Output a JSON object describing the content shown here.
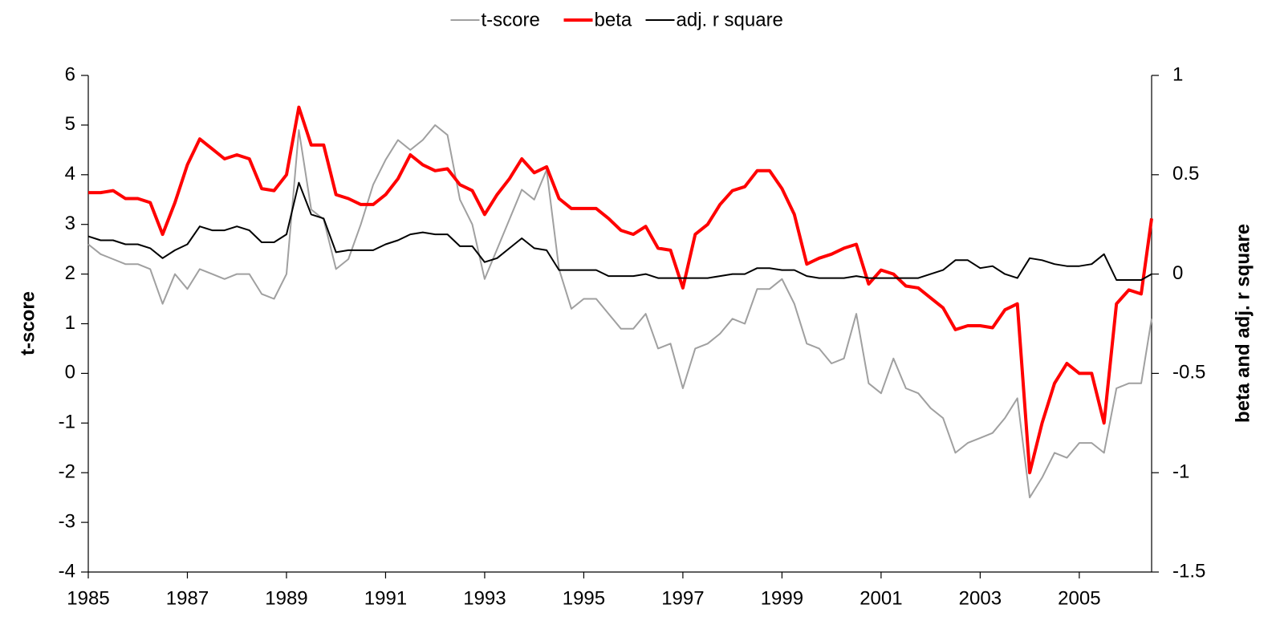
{
  "chart_data": {
    "type": "line",
    "x": [
      1985,
      1985.25,
      1985.5,
      1985.75,
      1986,
      1986.25,
      1986.5,
      1986.75,
      1987,
      1987.25,
      1987.5,
      1987.75,
      1988,
      1988.25,
      1988.5,
      1988.75,
      1989,
      1989.25,
      1989.5,
      1989.75,
      1990,
      1990.25,
      1990.5,
      1990.75,
      1991,
      1991.25,
      1991.5,
      1991.75,
      1992,
      1992.25,
      1992.5,
      1992.75,
      1993,
      1993.25,
      1993.5,
      1993.75,
      1994,
      1994.25,
      1994.5,
      1994.75,
      1995,
      1995.25,
      1995.5,
      1995.75,
      1996,
      1996.25,
      1996.5,
      1996.75,
      1997,
      1997.25,
      1997.5,
      1997.75,
      1998,
      1998.25,
      1998.5,
      1998.75,
      1999,
      1999.25,
      1999.5,
      1999.75,
      2000,
      2000.25,
      2000.5,
      2000.75,
      2001,
      2001.25,
      2001.5,
      2001.75,
      2002,
      2002.25,
      2002.5,
      2002.75,
      2003,
      2003.25,
      2003.5,
      2003.75,
      2004,
      2004.25,
      2004.5,
      2004.75,
      2005,
      2005.25,
      2005.5,
      2005.75,
      2006,
      2006.25,
      2006.46
    ],
    "series": [
      {
        "name": "t-score",
        "color": "#a0a0a0",
        "axis": "y",
        "values": [
          2.6,
          2.4,
          2.3,
          2.2,
          2.2,
          2.1,
          1.4,
          2.0,
          1.7,
          2.1,
          2.0,
          1.9,
          2.0,
          2.0,
          1.6,
          1.5,
          2.0,
          4.9,
          3.3,
          3.1,
          2.1,
          2.3,
          3.0,
          3.8,
          4.3,
          4.7,
          4.5,
          4.7,
          5.0,
          4.8,
          3.5,
          3.0,
          1.9,
          2.5,
          3.1,
          3.7,
          3.5,
          4.1,
          2.1,
          1.3,
          1.5,
          1.5,
          1.2,
          0.9,
          0.9,
          1.2,
          0.5,
          0.6,
          -0.3,
          0.5,
          0.6,
          0.8,
          1.1,
          1.0,
          1.7,
          1.7,
          1.9,
          1.4,
          0.6,
          0.5,
          0.2,
          0.3,
          1.2,
          -0.2,
          -0.4,
          0.3,
          -0.3,
          -0.4,
          -0.7,
          -0.9,
          -1.6,
          -1.4,
          -1.3,
          -1.2,
          -0.9,
          -0.5,
          -2.5,
          -2.1,
          -1.6,
          -1.7,
          -1.4,
          -1.4,
          -1.6,
          -0.3,
          -0.2,
          -0.2,
          1.1
        ]
      },
      {
        "name": "beta",
        "color": "#ff0000",
        "axis": "y2",
        "values": [
          0.41,
          0.41,
          0.42,
          0.38,
          0.38,
          0.36,
          0.2,
          0.36,
          0.55,
          0.68,
          0.63,
          0.58,
          0.6,
          0.58,
          0.43,
          0.42,
          0.5,
          0.84,
          0.65,
          0.65,
          0.4,
          0.38,
          0.35,
          0.35,
          0.4,
          0.48,
          0.6,
          0.55,
          0.52,
          0.53,
          0.45,
          0.42,
          0.3,
          0.4,
          0.48,
          0.58,
          0.51,
          0.54,
          0.38,
          0.33,
          0.33,
          0.33,
          0.28,
          0.22,
          0.2,
          0.24,
          0.13,
          0.12,
          -0.07,
          0.2,
          0.25,
          0.35,
          0.42,
          0.44,
          0.52,
          0.52,
          0.43,
          0.3,
          0.05,
          0.08,
          0.1,
          0.13,
          0.15,
          -0.05,
          0.02,
          0,
          -0.06,
          -0.07,
          -0.12,
          -0.17,
          -0.28,
          -0.26,
          -0.26,
          -0.27,
          -0.18,
          -0.15,
          -1.0,
          -0.75,
          -0.55,
          -0.45,
          -0.5,
          -0.5,
          -0.75,
          -0.15,
          -0.08,
          -0.1,
          0.28
        ]
      },
      {
        "name": "adj. r square",
        "color": "#000000",
        "axis": "y2",
        "values": [
          0.19,
          0.17,
          0.17,
          0.15,
          0.15,
          0.13,
          0.08,
          0.12,
          0.15,
          0.24,
          0.22,
          0.22,
          0.24,
          0.22,
          0.16,
          0.16,
          0.2,
          0.46,
          0.3,
          0.28,
          0.11,
          0.12,
          0.12,
          0.12,
          0.15,
          0.17,
          0.2,
          0.21,
          0.2,
          0.2,
          0.14,
          0.14,
          0.06,
          0.08,
          0.13,
          0.18,
          0.13,
          0.12,
          0.02,
          0.02,
          0.02,
          0.02,
          -0.01,
          -0.01,
          -0.01,
          0,
          -0.02,
          -0.02,
          -0.02,
          -0.02,
          -0.02,
          -0.01,
          0,
          0,
          0.03,
          0.03,
          0.02,
          0.02,
          -0.01,
          -0.02,
          -0.02,
          -0.02,
          -0.01,
          -0.02,
          -0.02,
          -0.02,
          -0.02,
          -0.02,
          0,
          0.02,
          0.07,
          0.07,
          0.03,
          0.04,
          0,
          -0.02,
          0.08,
          0.07,
          0.05,
          0.04,
          0.04,
          0.05,
          0.1,
          -0.03,
          -0.03,
          -0.03,
          0
        ]
      }
    ],
    "xlim": [
      1985,
      2006.46
    ],
    "xticks": [
      1985,
      1987,
      1989,
      1991,
      1993,
      1995,
      1997,
      1999,
      2001,
      2003,
      2005
    ],
    "ylim": [
      -4,
      6
    ],
    "yticks": [
      6,
      5,
      4,
      3,
      2,
      1,
      0,
      -1,
      -2,
      -3,
      -4
    ],
    "y2lim": [
      -1.5,
      1
    ],
    "y2ticks": [
      1,
      0.5,
      0,
      -0.5,
      -1,
      -1.5
    ],
    "ylabel": "t-score",
    "y2label": "beta and adj. r square",
    "legend": "top",
    "grid": false
  }
}
